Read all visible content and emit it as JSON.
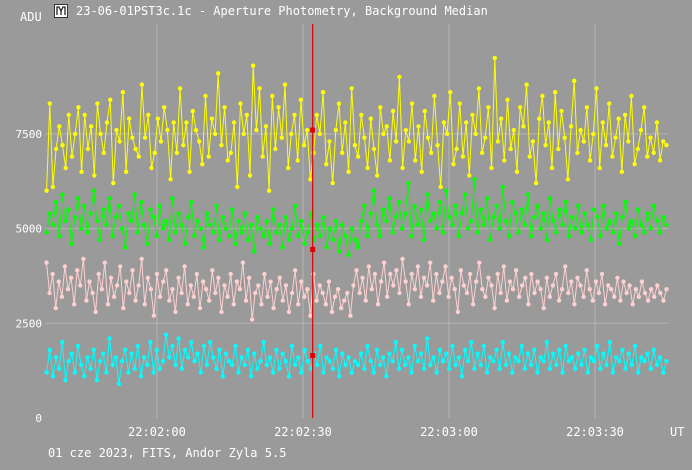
{
  "window": {
    "title": "23-06-01PST3c.1c - Aperture Photometry, Background Median",
    "icon": "telescope-icon",
    "footer": "01 cze 2023, FITS, Andor Zyla 5.5"
  },
  "colors": {
    "background": "#9a9a9a",
    "grid": "#b4b4b4",
    "cursor": "#e00000",
    "series_yellow": "#ffff00",
    "series_green": "#00ff00",
    "series_pink": "#ffd0d0",
    "series_cyan": "#00ffff"
  },
  "chart_data": {
    "type": "scatter",
    "title": "",
    "ylabel": "ADU",
    "xlabel": "UT",
    "ylim": [
      0,
      10400
    ],
    "xlim": [
      "22:01:37",
      "22:03:45"
    ],
    "y_ticks": [
      "0",
      "2500",
      "5000",
      "7500"
    ],
    "x_ticks": [
      "22:02:00",
      "22:02:30",
      "22:03:00",
      "22:03:30"
    ],
    "grid": true,
    "cursor_time": "22:02:32",
    "cursor_values": [
      7600,
      4450,
      1650
    ],
    "series": [
      {
        "color": "#ffff00",
        "values": [
          6000,
          8300,
          6100,
          7100,
          7700,
          7200,
          6600,
          8000,
          6900,
          7500,
          8200,
          6500,
          8000,
          7100,
          7700,
          6400,
          8300,
          7500,
          7000,
          7800,
          8400,
          6200,
          7600,
          7300,
          8600,
          6500,
          7900,
          7400,
          7100,
          6900,
          8800,
          7400,
          8000,
          6600,
          7000,
          7900,
          7300,
          8200,
          7600,
          6300,
          7800,
          7000,
          8700,
          7200,
          7800,
          6500,
          8100,
          7600,
          7300,
          6700,
          8500,
          6900,
          7900,
          7500,
          9100,
          7200,
          8200,
          6800,
          7000,
          7800,
          6100,
          8300,
          7500,
          8000,
          6400,
          9300,
          7600,
          8700,
          6900,
          7700,
          6000,
          8500,
          7100,
          8200,
          7400,
          8800,
          6600,
          7500,
          8000,
          6800,
          8400,
          7200,
          7600,
          6300,
          7000,
          8000,
          7500,
          8600,
          6700,
          7300,
          6200,
          7600,
          8300,
          7000,
          7800,
          6500,
          8700,
          7200,
          6900,
          8000,
          7400,
          6600,
          7900,
          7100,
          6400,
          8200,
          7500,
          7700,
          6800,
          8100,
          7300,
          9000,
          6600,
          7600,
          7300,
          8300,
          6800,
          7700,
          6500,
          8100,
          7400,
          7000,
          8500,
          7200,
          6100,
          7800,
          7500,
          8600,
          6700,
          7100,
          8300,
          6900,
          7800,
          6400,
          8000,
          7500,
          8700,
          7000,
          7400,
          8200,
          6600,
          9500,
          7300,
          7900,
          6800,
          8400,
          7100,
          7600,
          6500,
          8200,
          7700,
          8800,
          6900,
          7300,
          6200,
          7900,
          8500,
          7200,
          7800,
          6600,
          8600,
          7100,
          8100,
          7400,
          6300,
          7700,
          8900,
          7000,
          7600,
          7300,
          8200,
          6800,
          7500,
          8700,
          6600,
          7800,
          7200,
          8300,
          6900,
          7400,
          7900,
          6500,
          8000,
          7300,
          8500,
          6700,
          7100,
          7600,
          8200,
          6900,
          7400,
          7000,
          7800,
          6800,
          7300,
          7200
        ]
      },
      {
        "color": "#00ff00",
        "values": [
          4900,
          5400,
          5100,
          5700,
          4800,
          5900,
          5200,
          5500,
          4600,
          5300,
          5800,
          5000,
          5600,
          4900,
          5400,
          6000,
          5200,
          4700,
          5500,
          5100,
          5800,
          4800,
          5300,
          5600,
          5000,
          4500,
          5400,
          5200,
          5900,
          4900,
          5700,
          5100,
          4600,
          5500,
          5300,
          4800,
          5600,
          5000,
          5200,
          4700,
          5800,
          4900,
          5400,
          5100,
          4600,
          5300,
          5700,
          4800,
          5200,
          5000,
          4500,
          5400,
          5100,
          4900,
          5600,
          4700,
          5300,
          5000,
          4800,
          5500,
          4600,
          5200,
          4900,
          5400,
          4700,
          5100,
          4400,
          5300,
          5000,
          4800,
          5200,
          4600,
          5500,
          4900,
          5100,
          4500,
          5300,
          4700,
          5000,
          5600,
          4800,
          5200,
          4600,
          4900,
          5400,
          4700,
          5100,
          4800,
          5300,
          4500,
          5000,
          4700,
          5200,
          4400,
          5100,
          4800,
          4300,
          5000,
          4700,
          4500,
          5200,
          5600,
          4800,
          5400,
          6000,
          5100,
          4800,
          5500,
          5200,
          5800,
          4900,
          5300,
          5700,
          5000,
          5400,
          6200,
          4800,
          5600,
          5100,
          5500,
          4700,
          5900,
          5200,
          5400,
          5000,
          5700,
          4900,
          6000,
          5300,
          5100,
          5600,
          4800,
          5400,
          5900,
          5000,
          5200,
          6300,
          4900,
          5500,
          5100,
          5800,
          4700,
          5300,
          5600,
          5000,
          6100,
          5200,
          4800,
          5700,
          5400,
          4900,
          5500,
          5100,
          5900,
          4800,
          5300,
          5600,
          5000,
          5400,
          4700,
          5800,
          5200,
          4900,
          5500,
          5100,
          5700,
          4800,
          5300,
          5000,
          5600,
          4900,
          5400,
          5100,
          4700,
          5500,
          5300,
          4800,
          5600,
          5000,
          5200,
          4900,
          5400,
          4600,
          5300,
          5700,
          5000,
          5200,
          4800,
          5500,
          5100,
          4900,
          5400,
          5000,
          5600,
          5200,
          4900,
          5300,
          5100
        ]
      },
      {
        "color": "#ffd0d0",
        "values": [
          4100,
          3300,
          3800,
          2900,
          3600,
          3200,
          4000,
          3400,
          3700,
          3000,
          3900,
          3500,
          4200,
          3100,
          3600,
          3300,
          2800,
          3800,
          3400,
          4100,
          3000,
          3700,
          3200,
          3500,
          4000,
          2900,
          3600,
          3300,
          3900,
          3100,
          3500,
          4200,
          3000,
          3700,
          3400,
          2700,
          3800,
          3200,
          3600,
          3900,
          3100,
          3400,
          2800,
          3700,
          3300,
          4000,
          3000,
          3500,
          3200,
          3800,
          2900,
          3600,
          3400,
          3100,
          3900,
          3300,
          3700,
          2800,
          3500,
          3200,
          3800,
          3000,
          3600,
          3400,
          4100,
          3100,
          3700,
          2600,
          3300,
          3500,
          3000,
          3800,
          3200,
          3600,
          2900,
          3400,
          3700,
          3100,
          3500,
          2800,
          3300,
          3900,
          3000,
          3600,
          3200,
          3400,
          2700,
          3800,
          3100,
          3500,
          3300,
          3000,
          3600,
          2800,
          3200,
          3400,
          2900,
          3100,
          3300,
          2700,
          3500,
          3900,
          3300,
          3700,
          3100,
          4000,
          3400,
          3800,
          3000,
          3600,
          4100,
          3200,
          3800,
          3500,
          3900,
          3300,
          4200,
          3600,
          3000,
          3800,
          3400,
          4000,
          3200,
          3700,
          3500,
          4100,
          3100,
          3800,
          3300,
          3600,
          4000,
          3200,
          3700,
          3400,
          2800,
          3900,
          3500,
          3300,
          3800,
          3000,
          3600,
          4100,
          3400,
          3200,
          3700,
          3500,
          2900,
          3800,
          3300,
          4000,
          3100,
          3600,
          3400,
          3900,
          3200,
          3500,
          3700,
          3000,
          3800,
          3300,
          3600,
          3400,
          2900,
          3700,
          3200,
          3500,
          3800,
          3100,
          3400,
          4000,
          3300,
          3600,
          3000,
          3700,
          3500,
          3200,
          3900,
          3400,
          3100,
          3600,
          3300,
          3800,
          3000,
          3500,
          3400,
          3200,
          3700,
          3100,
          3600,
          3300,
          3500,
          3000,
          3400,
          3200,
          3600,
          3300,
          3100,
          3400,
          3200,
          3500,
          3300,
          3100,
          3400
        ]
      },
      {
        "color": "#00ffff",
        "values": [
          1200,
          1800,
          1100,
          1600,
          1300,
          2000,
          1000,
          1500,
          1700,
          1200,
          1900,
          1400,
          1100,
          1600,
          1300,
          1800,
          1000,
          1500,
          1700,
          1200,
          2100,
          1400,
          1600,
          900,
          1500,
          1800,
          1200,
          1700,
          1300,
          1900,
          1100,
          1600,
          1400,
          2000,
          1200,
          1800,
          1300,
          1500,
          2200,
          1600,
          1900,
          1400,
          2100,
          1300,
          1800,
          1600,
          2000,
          1500,
          1700,
          1200,
          1900,
          1400,
          2000,
          1600,
          1300,
          1800,
          1100,
          1700,
          1500,
          1400,
          1900,
          1200,
          1600,
          1400,
          1800,
          1100,
          1700,
          1300,
          1500,
          2000,
          1400,
          1600,
          1200,
          1800,
          1300,
          1700,
          1500,
          1100,
          1900,
          1400,
          1600,
          1200,
          1800,
          1500,
          1300,
          1700,
          1400,
          1900,
          1200,
          1600,
          1500,
          1300,
          1800,
          1100,
          1700,
          1400,
          1600,
          1200,
          1500,
          1400,
          1700,
          1300,
          1900,
          1500,
          1200,
          1800,
          1400,
          1600,
          1100,
          1700,
          1500,
          2000,
          1300,
          1800,
          1400,
          1600,
          1200,
          1900,
          1500,
          1700,
          1300,
          2100,
          1400,
          1600,
          1200,
          1800,
          1500,
          1700,
          1300,
          1900,
          1400,
          1600,
          1100,
          1800,
          1500,
          2000,
          1300,
          1700,
          1400,
          1900,
          1200,
          1600,
          1500,
          1800,
          1300,
          2000,
          1400,
          1700,
          1200,
          1600,
          1500,
          1900,
          1300,
          1700,
          1400,
          1800,
          1200,
          1600,
          1500,
          2000,
          1300,
          1700,
          1400,
          1800,
          1200,
          1900,
          1500,
          1600,
          1300,
          1700,
          1400,
          1800,
          1200,
          1600,
          1500,
          1900,
          1300,
          1700,
          1400,
          2000,
          1200,
          1600,
          1500,
          1800,
          1300,
          1700,
          1400,
          1900,
          1200,
          1600,
          1500,
          1700,
          1300,
          1800,
          1400,
          1600,
          1200,
          1500
        ]
      }
    ]
  }
}
